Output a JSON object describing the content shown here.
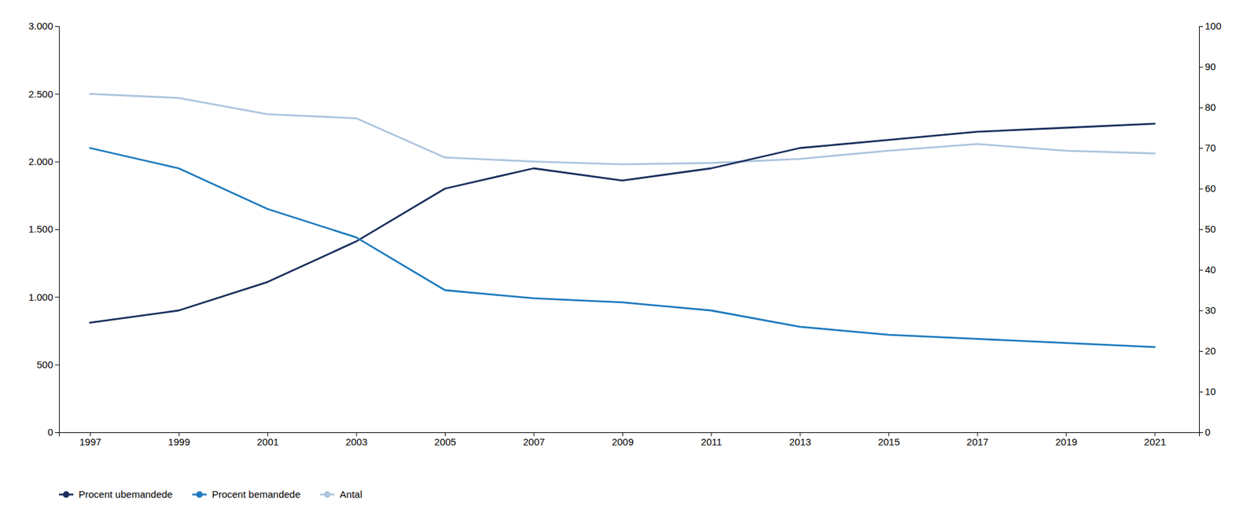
{
  "chart_data": {
    "type": "line",
    "x": [
      1997,
      1999,
      2001,
      2003,
      2005,
      2007,
      2009,
      2011,
      2013,
      2015,
      2017,
      2019,
      2021
    ],
    "xlim": [
      1996.3,
      2022.0
    ],
    "xticks": [
      1997,
      1999,
      2001,
      2003,
      2005,
      2007,
      2009,
      2011,
      2013,
      2015,
      2017,
      2019,
      2021
    ],
    "ylim": [
      0,
      3000
    ],
    "yticks": [
      0,
      500,
      {
        "value": 1000,
        "label": "1.000"
      },
      {
        "value": 1500,
        "label": "1.500"
      },
      {
        "value": 2000,
        "label": "2.000"
      },
      {
        "value": 2500,
        "label": "2.500"
      },
      {
        "value": 3000,
        "label": "3.000"
      }
    ],
    "y2lim": [
      0,
      100
    ],
    "y2ticks": [
      0,
      10,
      20,
      30,
      40,
      50,
      60,
      70,
      80,
      90,
      100
    ],
    "series": [
      {
        "name": "Procent ubemandede",
        "color": "#1b2f5e",
        "axis": "y2",
        "values": [
          27,
          30,
          37,
          47,
          60,
          65,
          62,
          65,
          70,
          72,
          74,
          75,
          76
        ]
      },
      {
        "name": "Procent bemandede",
        "color": "#1f7bbf",
        "axis": "y2",
        "values": [
          70,
          65,
          55,
          48,
          35,
          33,
          32,
          30,
          26,
          24,
          23,
          22,
          21
        ]
      },
      {
        "name": "Antal",
        "color": "#adc4de",
        "values": [
          2500,
          2470,
          2350,
          2320,
          2030,
          2000,
          1980,
          1990,
          2020,
          2080,
          2130,
          2080,
          2060
        ]
      }
    ],
    "grid": false,
    "legend": "bottom"
  }
}
